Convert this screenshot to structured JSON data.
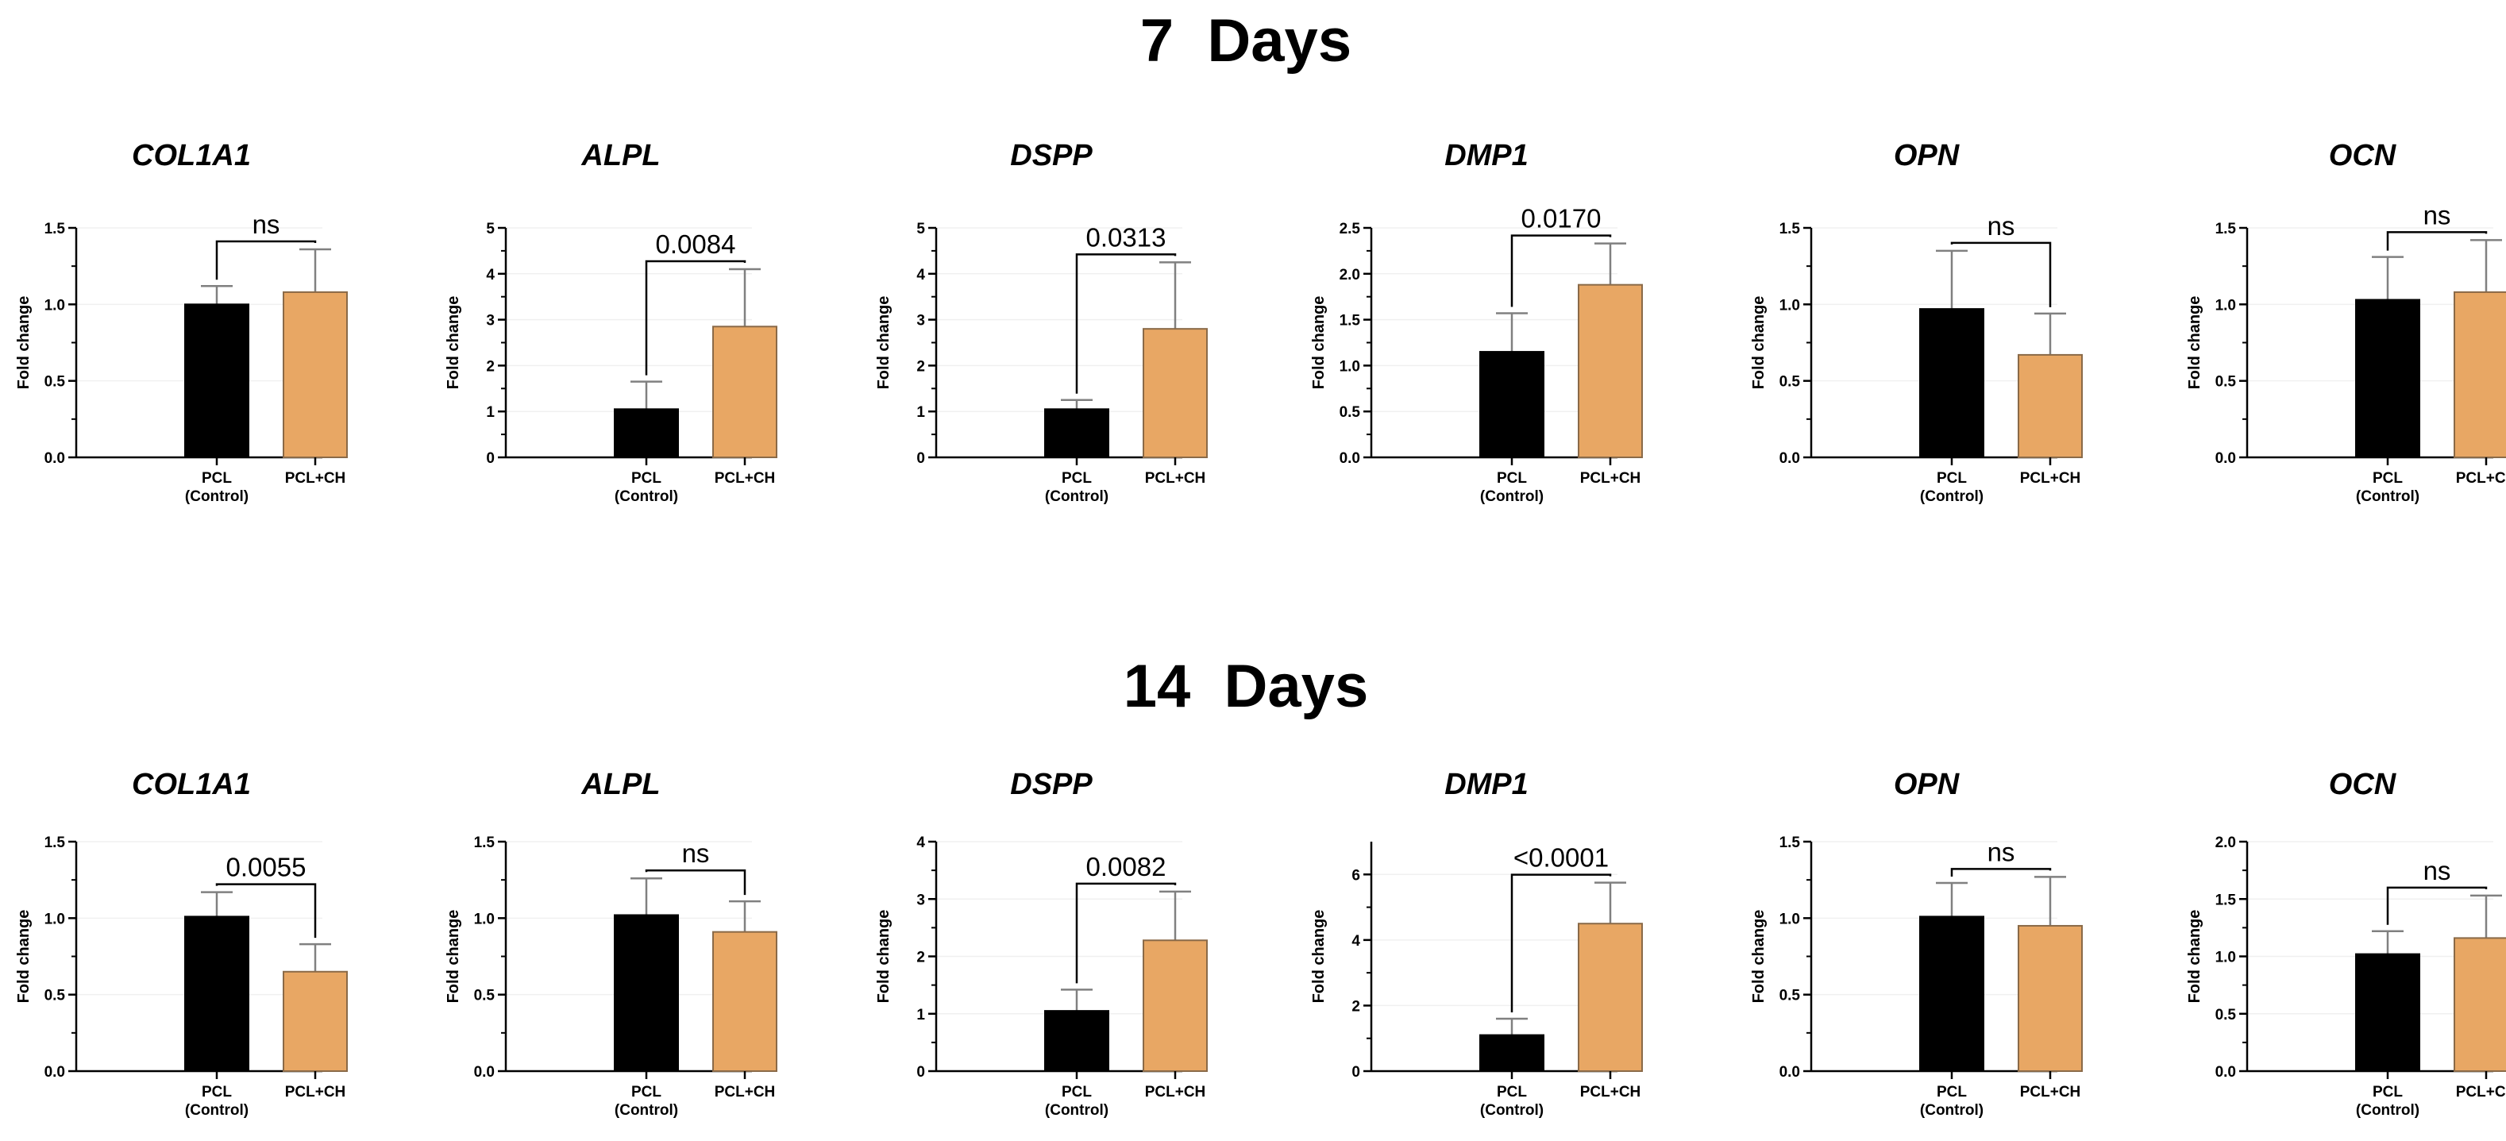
{
  "sections": [
    {
      "title": "7  Days"
    },
    {
      "title": "14  Days"
    }
  ],
  "colors": {
    "control": "#000000",
    "treatment": "#e8a764",
    "treatment_stroke": "#8a6a48",
    "error_bar": "#808080",
    "axis": "#000000",
    "gridline": "#f0f0f0"
  },
  "chart_data": [
    {
      "type": "bar",
      "section": "7  Days",
      "title": "COL1A1",
      "ylabel": "Fold change",
      "categories": [
        "PCL\n(Control)",
        "PCL+CH"
      ],
      "values": [
        1.0,
        1.08
      ],
      "errors": [
        0.12,
        0.28
      ],
      "ylim": [
        0,
        1.5
      ],
      "yticks": [
        0.0,
        0.5,
        1.0,
        1.5
      ],
      "ytick_labels": [
        "0.0",
        "0.5",
        "1.0",
        "1.5"
      ],
      "significance": "ns"
    },
    {
      "type": "bar",
      "section": "7  Days",
      "title": "ALPL",
      "ylabel": "Fold change",
      "categories": [
        "PCL\n(Control)",
        "PCL+CH"
      ],
      "values": [
        1.05,
        2.85
      ],
      "errors": [
        0.6,
        1.25
      ],
      "ylim": [
        0,
        5
      ],
      "yticks": [
        0,
        1,
        2,
        3,
        4,
        5
      ],
      "ytick_labels": [
        "0",
        "1",
        "2",
        "3",
        "4",
        "5"
      ],
      "significance": "0.0084"
    },
    {
      "type": "bar",
      "section": "7  Days",
      "title": "DSPP",
      "ylabel": "Fold change",
      "categories": [
        "PCL\n(Control)",
        "PCL+CH"
      ],
      "values": [
        1.05,
        2.8
      ],
      "errors": [
        0.2,
        1.45
      ],
      "ylim": [
        0,
        5
      ],
      "yticks": [
        0,
        1,
        2,
        3,
        4,
        5
      ],
      "ytick_labels": [
        "0",
        "1",
        "2",
        "3",
        "4",
        "5"
      ],
      "significance": "0.0313"
    },
    {
      "type": "bar",
      "section": "7  Days",
      "title": "DMP1",
      "ylabel": "Fold change",
      "categories": [
        "PCL\n(Control)",
        "PCL+CH"
      ],
      "values": [
        1.15,
        1.88
      ],
      "errors": [
        0.42,
        0.45
      ],
      "ylim": [
        0,
        2.5
      ],
      "yticks": [
        0.0,
        0.5,
        1.0,
        1.5,
        2.0,
        2.5
      ],
      "ytick_labels": [
        "0.0",
        "0.5",
        "1.0",
        "1.5",
        "2.0",
        "2.5"
      ],
      "significance": "0.0170"
    },
    {
      "type": "bar",
      "section": "7  Days",
      "title": "OPN",
      "ylabel": "Fold change",
      "categories": [
        "PCL\n(Control)",
        "PCL+CH"
      ],
      "values": [
        0.97,
        0.67
      ],
      "errors": [
        0.38,
        0.27
      ],
      "ylim": [
        0,
        1.5
      ],
      "yticks": [
        0.0,
        0.5,
        1.0,
        1.5
      ],
      "ytick_labels": [
        "0.0",
        "0.5",
        "1.0",
        "1.5"
      ],
      "significance": "ns"
    },
    {
      "type": "bar",
      "section": "7  Days",
      "title": "OCN",
      "ylabel": "Fold change",
      "categories": [
        "PCL\n(Control)",
        "PCL+CH"
      ],
      "values": [
        1.03,
        1.08
      ],
      "errors": [
        0.28,
        0.34
      ],
      "ylim": [
        0,
        1.5
      ],
      "yticks": [
        0.0,
        0.5,
        1.0,
        1.5
      ],
      "ytick_labels": [
        "0.0",
        "0.5",
        "1.0",
        "1.5"
      ],
      "significance": "ns"
    },
    {
      "type": "bar",
      "section": "14  Days",
      "title": "COL1A1",
      "ylabel": "Fold change",
      "categories": [
        "PCL\n(Control)",
        "PCL+CH"
      ],
      "values": [
        1.01,
        0.65
      ],
      "errors": [
        0.16,
        0.18
      ],
      "ylim": [
        0,
        1.5
      ],
      "yticks": [
        0.0,
        0.5,
        1.0,
        1.5
      ],
      "ytick_labels": [
        "0.0",
        "0.5",
        "1.0",
        "1.5"
      ],
      "significance": "0.0055"
    },
    {
      "type": "bar",
      "section": "14  Days",
      "title": "ALPL",
      "ylabel": "Fold change",
      "categories": [
        "PCL\n(Control)",
        "PCL+CH"
      ],
      "values": [
        1.02,
        0.91
      ],
      "errors": [
        0.24,
        0.2
      ],
      "ylim": [
        0,
        1.5
      ],
      "yticks": [
        0.0,
        0.5,
        1.0,
        1.5
      ],
      "ytick_labels": [
        "0.0",
        "0.5",
        "1.0",
        "1.5"
      ],
      "significance": "ns"
    },
    {
      "type": "bar",
      "section": "14  Days",
      "title": "DSPP",
      "ylabel": "Fold change",
      "categories": [
        "PCL\n(Control)",
        "PCL+CH"
      ],
      "values": [
        1.05,
        2.28
      ],
      "errors": [
        0.37,
        0.85
      ],
      "ylim": [
        0,
        4
      ],
      "yticks": [
        0,
        1,
        2,
        3,
        4
      ],
      "ytick_labels": [
        "0",
        "1",
        "2",
        "3",
        "4"
      ],
      "significance": "0.0082"
    },
    {
      "type": "bar",
      "section": "14  Days",
      "title": "DMP1",
      "ylabel": "Fold change",
      "categories": [
        "PCL\n(Control)",
        "PCL+CH"
      ],
      "values": [
        1.1,
        4.5
      ],
      "errors": [
        0.5,
        1.25
      ],
      "ylim": [
        0,
        7
      ],
      "yticks": [
        0,
        2,
        4,
        6
      ],
      "ytick_labels": [
        "0",
        "2",
        "4",
        "6"
      ],
      "significance": "<0.0001"
    },
    {
      "type": "bar",
      "section": "14  Days",
      "title": "OPN",
      "ylabel": "Fold change",
      "categories": [
        "PCL\n(Control)",
        "PCL+CH"
      ],
      "values": [
        1.01,
        0.95
      ],
      "errors": [
        0.22,
        0.32
      ],
      "ylim": [
        0,
        1.5
      ],
      "yticks": [
        0.0,
        0.5,
        1.0,
        1.5
      ],
      "ytick_labels": [
        "0.0",
        "0.5",
        "1.0",
        "1.5"
      ],
      "significance": "ns"
    },
    {
      "type": "bar",
      "section": "14  Days",
      "title": "OCN",
      "ylabel": "Fold change",
      "categories": [
        "PCL\n(Control)",
        "PCL+CH"
      ],
      "values": [
        1.02,
        1.16
      ],
      "errors": [
        0.2,
        0.37
      ],
      "ylim": [
        0,
        2.0
      ],
      "yticks": [
        0.0,
        0.5,
        1.0,
        1.5,
        2.0
      ],
      "ytick_labels": [
        "0.0",
        "0.5",
        "1.0",
        "1.5",
        "2.0"
      ],
      "significance": "ns"
    }
  ]
}
